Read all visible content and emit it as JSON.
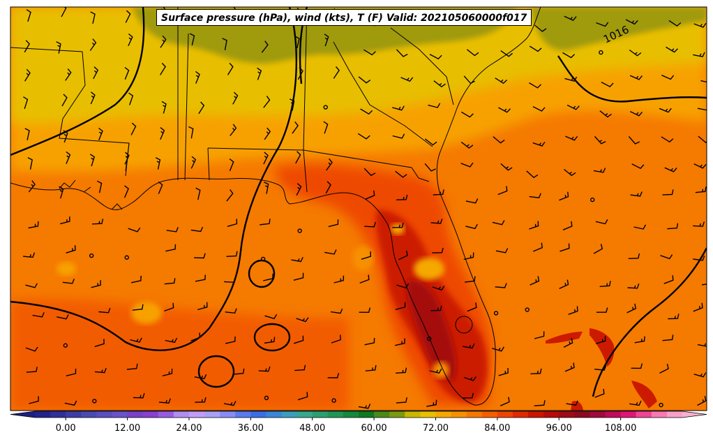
{
  "title": "Surface pressure (hPa), wind (kts), T (F) Valid: 202105060000f017",
  "isobar_label": "1016",
  "colorbar": {
    "min": -6,
    "max": 120,
    "step": 3,
    "ticks": [
      "0.00",
      "12.00",
      "24.00",
      "36.00",
      "48.00",
      "60.00",
      "72.00",
      "84.00",
      "96.00",
      "108.00"
    ],
    "colors": [
      "#23238c",
      "#30309a",
      "#3d3da6",
      "#4a4ab3",
      "#5a4fbf",
      "#6a52c8",
      "#7a40c8",
      "#8a3fd0",
      "#9a5ae0",
      "#b08ef0",
      "#c39cf8",
      "#a9a0f8",
      "#8a8cf5",
      "#5a7af0",
      "#3a6ee8",
      "#3a86d8",
      "#3a9ec0",
      "#35a88f",
      "#2aa070",
      "#1f9655",
      "#148a3c",
      "#0d7a22",
      "#4a8a18",
      "#7a9a10",
      "#c8b800",
      "#e8c000",
      "#f5a800",
      "#f79000",
      "#f77800",
      "#f55e00",
      "#ee4400",
      "#e02a00",
      "#cc1400",
      "#b80a0a",
      "#a00a14",
      "#8c0a1e",
      "#a00a3c",
      "#c00a5a",
      "#e01478",
      "#f04496",
      "#f87ab4",
      "#f8a0c8"
    ]
  },
  "colors": {
    "coastline": "#000000",
    "isobar": "#000000",
    "title_bg": "#ffffff"
  }
}
